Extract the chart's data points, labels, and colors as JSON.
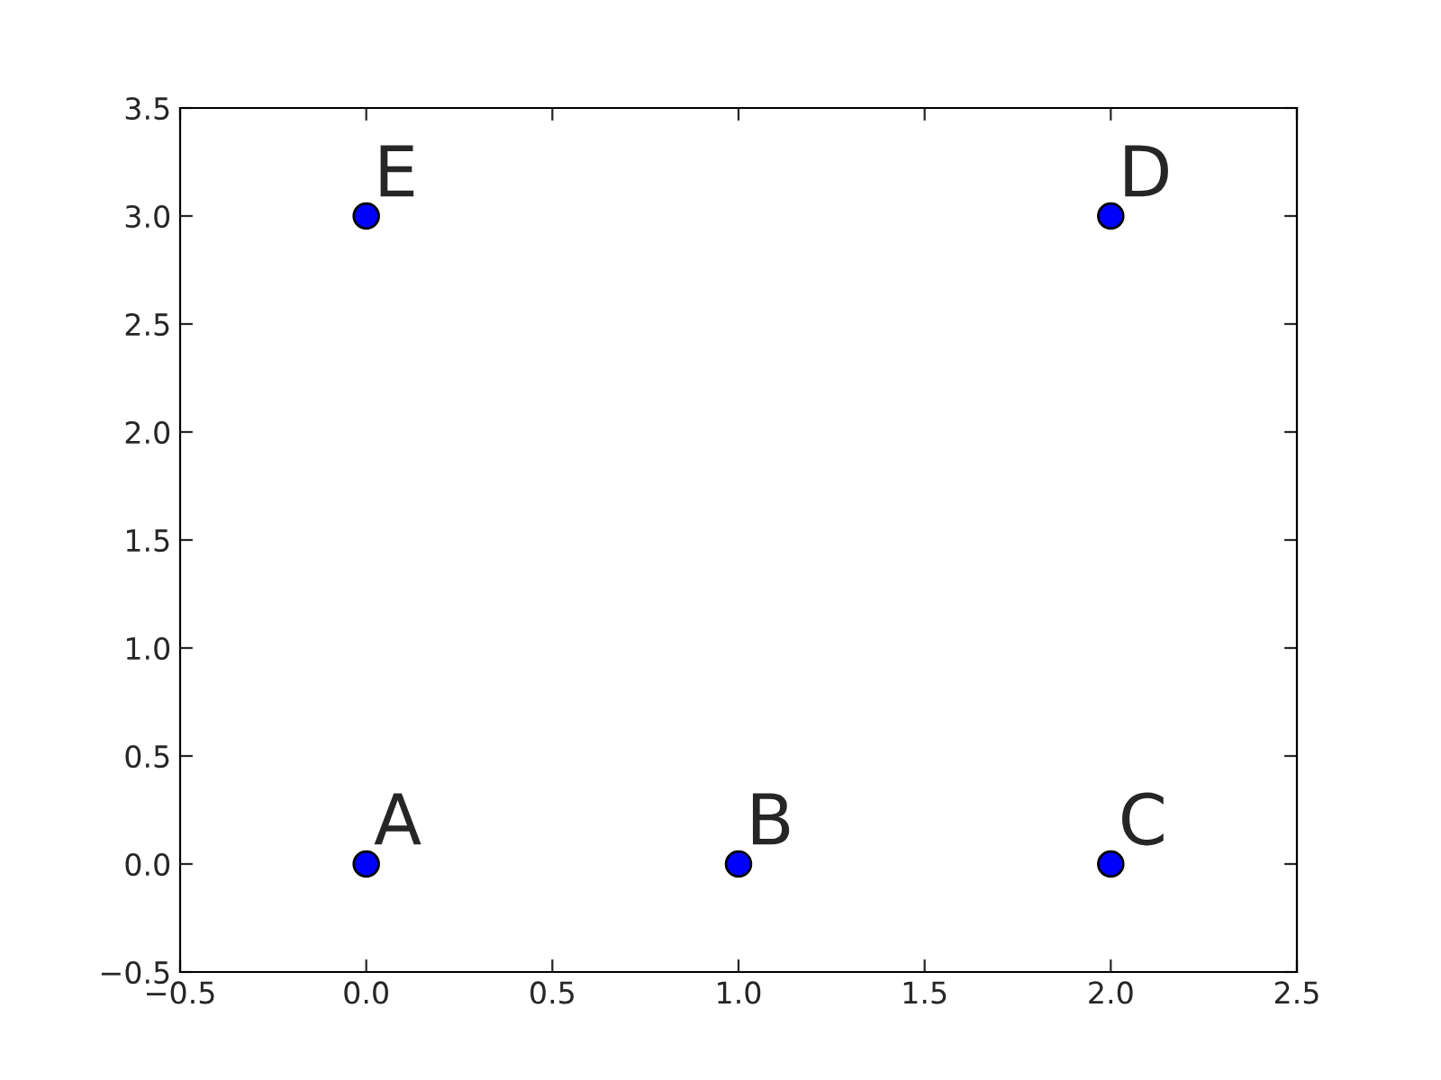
{
  "chart_data": {
    "type": "scatter",
    "x": [
      0,
      1,
      2,
      2,
      0
    ],
    "values": [
      0,
      0,
      0,
      3,
      3
    ],
    "color": "#0000ff",
    "marker": "circle",
    "annotations": [
      {
        "text": "A",
        "x": 0,
        "y": 0
      },
      {
        "text": "B",
        "x": 1,
        "y": 0
      },
      {
        "text": "C",
        "x": 2,
        "y": 0
      },
      {
        "text": "D",
        "x": 2,
        "y": 3
      },
      {
        "text": "E",
        "x": 0,
        "y": 3
      }
    ],
    "xlim": [
      -0.5,
      2.5
    ],
    "xticks": [
      {
        "value": -0.5,
        "label": "−0.5"
      },
      {
        "value": 0,
        "label": "0.0"
      },
      {
        "value": 0.5,
        "label": "0.5"
      },
      {
        "value": 1,
        "label": "1.0"
      },
      {
        "value": 1.5,
        "label": "1.5"
      },
      {
        "value": 2,
        "label": "2.0"
      },
      {
        "value": 2.5,
        "label": "2.5"
      }
    ],
    "ylim": [
      -0.5,
      3.5
    ],
    "yticks": [
      {
        "value": -0.5,
        "label": "−0.5"
      },
      {
        "value": 0,
        "label": "0.0"
      },
      {
        "value": 0.5,
        "label": "0.5"
      },
      {
        "value": 1,
        "label": "1.0"
      },
      {
        "value": 1.5,
        "label": "1.5"
      },
      {
        "value": 2,
        "label": "2.0"
      },
      {
        "value": 2.5,
        "label": "2.5"
      },
      {
        "value": 3,
        "label": "3.0"
      },
      {
        "value": 3.5,
        "label": "3.5"
      }
    ],
    "grid": false,
    "legend": false
  }
}
